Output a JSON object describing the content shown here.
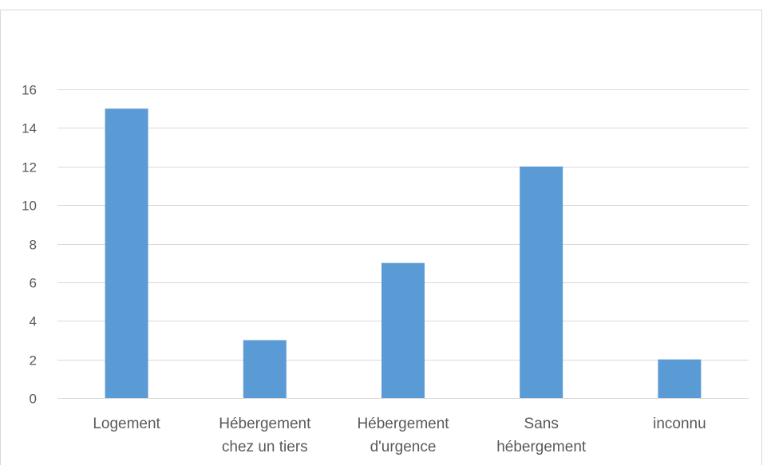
{
  "chart_data": {
    "type": "bar",
    "categories": [
      [
        "Logement"
      ],
      [
        "Hébergement",
        "chez un tiers"
      ],
      [
        "Hébergement",
        "d'urgence"
      ],
      [
        "Sans",
        "hébergement"
      ],
      [
        "inconnu"
      ]
    ],
    "values": [
      15,
      3,
      7,
      12,
      2
    ],
    "ylim": [
      0,
      16
    ],
    "yticks": [
      0,
      2,
      4,
      6,
      8,
      10,
      12,
      14,
      16
    ],
    "grid": true,
    "legend": "none",
    "bar_color": "#5B9BD5",
    "grid_color": "#D9D9D9",
    "text_color": "#595959",
    "border_color": "#D9D9D9"
  }
}
